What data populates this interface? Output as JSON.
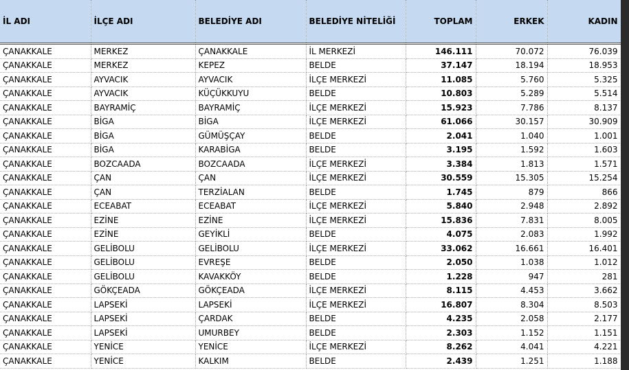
{
  "table": {
    "header": [
      "İL ADI",
      "İLÇE ADI",
      "BELEDİYE ADI",
      "BELEDİYE NİTELİĞİ",
      "TOPLAM",
      "ERKEK",
      "KADIN"
    ],
    "rows": [
      [
        "ÇANAKKALE",
        "MERKEZ",
        "ÇANAKKALE",
        "İL MERKEZİ",
        "146.111",
        "70.072",
        "76.039"
      ],
      [
        "ÇANAKKALE",
        "MERKEZ",
        "KEPEZ",
        "BELDE",
        "37.147",
        "18.194",
        "18.953"
      ],
      [
        "ÇANAKKALE",
        "AYVACIK",
        "AYVACIK",
        "İLÇE MERKEZİ",
        "11.085",
        "5.760",
        "5.325"
      ],
      [
        "ÇANAKKALE",
        "AYVACIK",
        "KÜÇÜKKUYU",
        "BELDE",
        "10.803",
        "5.289",
        "5.514"
      ],
      [
        "ÇANAKKALE",
        "BAYRAMİÇ",
        "BAYRAMİÇ",
        "İLÇE MERKEZİ",
        "15.923",
        "7.786",
        "8.137"
      ],
      [
        "ÇANAKKALE",
        "BİGA",
        "BİGA",
        "İLÇE MERKEZİ",
        "61.066",
        "30.157",
        "30.909"
      ],
      [
        "ÇANAKKALE",
        "BİGA",
        "GÜMÜŞÇAY",
        "BELDE",
        "2.041",
        "1.040",
        "1.001"
      ],
      [
        "ÇANAKKALE",
        "BİGA",
        "KARABİGA",
        "BELDE",
        "3.195",
        "1.592",
        "1.603"
      ],
      [
        "ÇANAKKALE",
        "BOZCAADA",
        "BOZCAADA",
        "İLÇE MERKEZİ",
        "3.384",
        "1.813",
        "1.571"
      ],
      [
        "ÇANAKKALE",
        "ÇAN",
        "ÇAN",
        "İLÇE MERKEZİ",
        "30.559",
        "15.305",
        "15.254"
      ],
      [
        "ÇANAKKALE",
        "ÇAN",
        "TERZİALAN",
        "BELDE",
        "1.745",
        "879",
        "866"
      ],
      [
        "ÇANAKKALE",
        "ECEABAT",
        "ECEABAT",
        "İLÇE MERKEZİ",
        "5.840",
        "2.948",
        "2.892"
      ],
      [
        "ÇANAKKALE",
        "EZİNE",
        "EZİNE",
        "İLÇE MERKEZİ",
        "15.836",
        "7.831",
        "8.005"
      ],
      [
        "ÇANAKKALE",
        "EZİNE",
        "GEYİKLİ",
        "BELDE",
        "4.075",
        "2.083",
        "1.992"
      ],
      [
        "ÇANAKKALE",
        "GELİBOLU",
        "GELİBOLU",
        "İLÇE MERKEZİ",
        "33.062",
        "16.661",
        "16.401"
      ],
      [
        "ÇANAKKALE",
        "GELİBOLU",
        "EVREŞE",
        "BELDE",
        "2.050",
        "1.038",
        "1.012"
      ],
      [
        "ÇANAKKALE",
        "GELİBOLU",
        "KAVAKKÖY",
        "BELDE",
        "1.228",
        "947",
        "281"
      ],
      [
        "ÇANAKKALE",
        "GÖKÇEADA",
        "GÖKÇEADA",
        "İLÇE MERKEZİ",
        "8.115",
        "4.453",
        "3.662"
      ],
      [
        "ÇANAKKALE",
        "LAPSEKİ",
        "LAPSEKİ",
        "İLÇE MERKEZİ",
        "16.807",
        "8.304",
        "8.503"
      ],
      [
        "ÇANAKKALE",
        "LAPSEKİ",
        "ÇARDAK",
        "BELDE",
        "4.235",
        "2.058",
        "2.177"
      ],
      [
        "ÇANAKKALE",
        "LAPSEKİ",
        "UMURBEY",
        "BELDE",
        "2.303",
        "1.152",
        "1.151"
      ],
      [
        "ÇANAKKALE",
        "YENİCE",
        "YENİCE",
        "İLÇE MERKEZİ",
        "8.262",
        "4.041",
        "4.221"
      ],
      [
        "ÇANAKKALE",
        "YENİCE",
        "KALKIM",
        "BELDE",
        "2.439",
        "1.251",
        "1.188"
      ]
    ]
  }
}
